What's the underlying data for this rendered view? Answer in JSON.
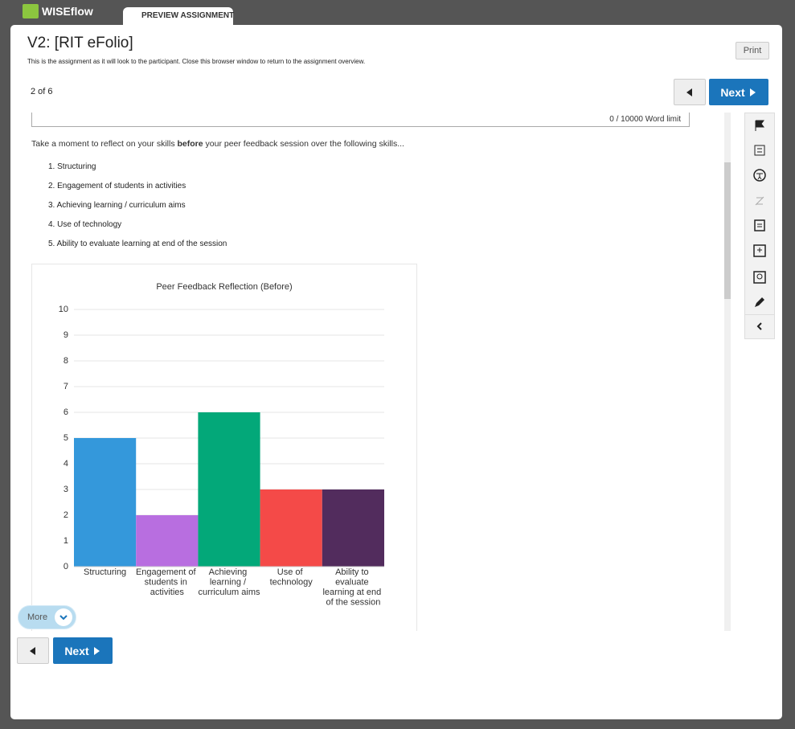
{
  "header": {
    "logo": "WISEflow",
    "tab": "PREVIEW ASSIGNMENT"
  },
  "page": {
    "title": "V2: [RIT eFolio]",
    "subtitle": "This is the assignment as it will look to the participant. Close this browser window to return to the assignment overview.",
    "print": "Print"
  },
  "nav": {
    "position": "2 of 6",
    "next": "Next"
  },
  "content": {
    "word_limit": "0 / 10000 Word limit",
    "intro": [
      "Take a moment to reflect on your skills ",
      "before",
      " your peer feedback session over the following skills..."
    ],
    "list": [
      "1. Structuring",
      "2. Engagement of students in activities",
      "3. Achieving learning / curriculum aims",
      "4. Use of technology",
      "5. Ability to evaluate learning at end of the session"
    ],
    "more": "More"
  },
  "bottom_nav": {
    "next": "Next"
  },
  "chart_data": {
    "type": "bar",
    "title": "Peer Feedback Reflection (Before)",
    "categories": [
      "Structuring",
      "Engagement of students in activities",
      "Achieving learning / curriculum aims",
      "Use of technology",
      "Ability to evaluate learning at end of the session"
    ],
    "values": [
      5,
      2,
      6,
      3,
      3
    ],
    "colors": [
      "#3498db",
      "#b86ee0",
      "#03a879",
      "#f44a48",
      "#522c5d"
    ],
    "ylim": [
      0,
      10
    ],
    "yticks": [
      0,
      1,
      2,
      3,
      4,
      5,
      6,
      7,
      8,
      9,
      10
    ],
    "grid": true
  }
}
